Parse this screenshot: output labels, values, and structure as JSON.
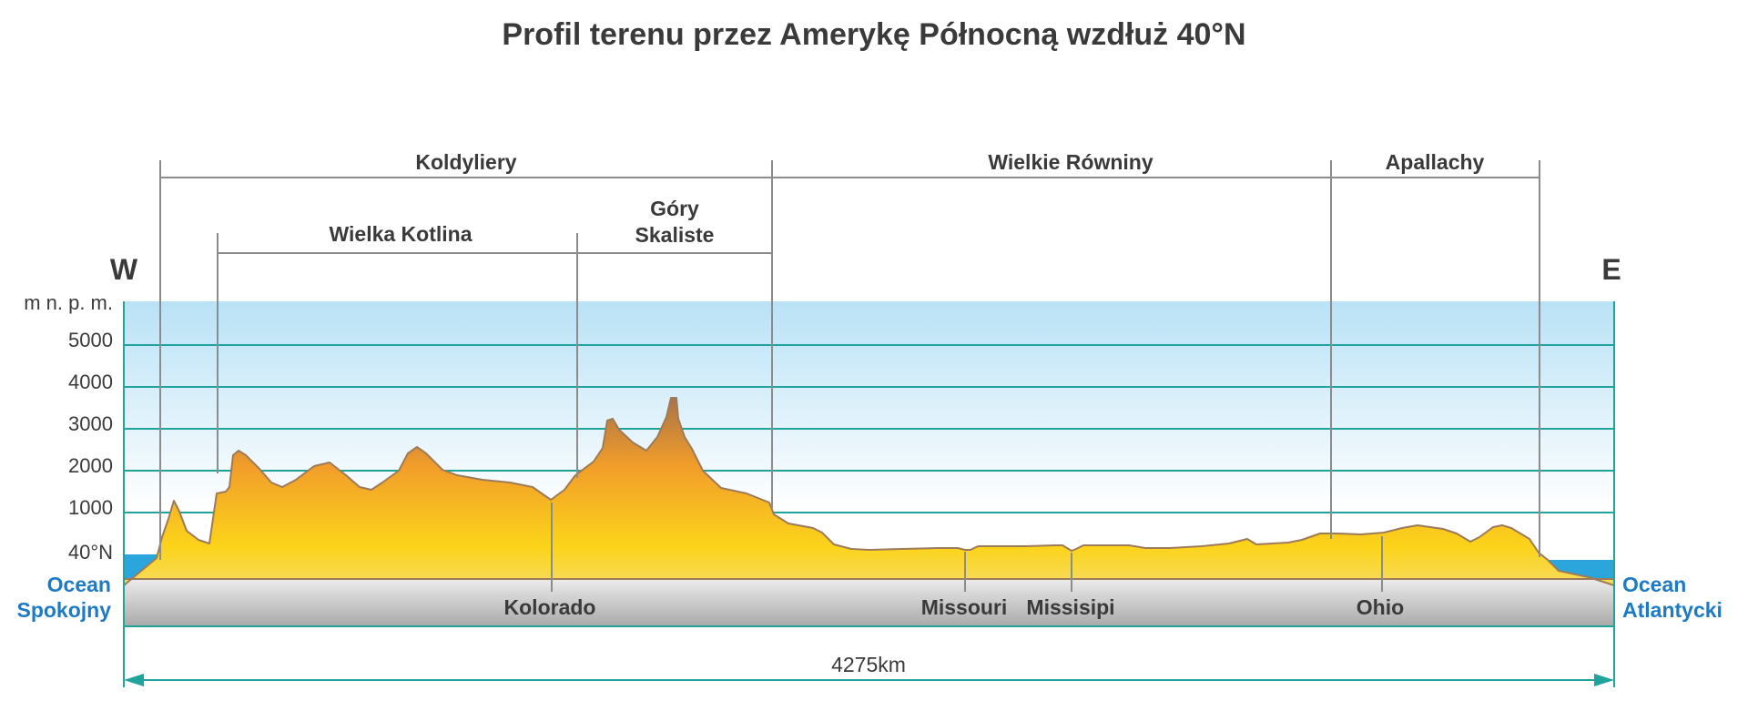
{
  "title": "Profil terenu przez Amerykę Północną wzdłuż 40°N",
  "directions": {
    "west": "W",
    "east": "E"
  },
  "y_axis": {
    "unit": "m n. p. m.",
    "ticks": [
      "5000",
      "4000",
      "3000",
      "2000",
      "1000"
    ],
    "sea_level_label": "40°N"
  },
  "regions": {
    "level1": [
      "Koldyliery",
      "Wielkie Równiny",
      "Apallachy"
    ],
    "level2": [
      "Wielka Kotlina",
      "Góry",
      "Skaliste"
    ]
  },
  "rivers": [
    "Kolorado",
    "Missouri",
    "Missisipi",
    "Ohio"
  ],
  "oceans": {
    "west_line1": "Ocean",
    "west_line2": "Spokojny",
    "east_line1": "Ocean",
    "east_line2": "Atlantycki"
  },
  "distance": "4275km",
  "colors": {
    "sky_top": "#b9e2f6",
    "gridline": "#1fa39a",
    "terrain_high": "#a87248",
    "terrain_mid": "#f19d2a",
    "terrain_low": "#fcd41a",
    "terrain_base": "#f0e3a8",
    "ground": "#bfbfbf",
    "ocean": "#2aa6dc",
    "ocean_text": "#1f7ac4",
    "outline": "#9e7b58"
  }
}
